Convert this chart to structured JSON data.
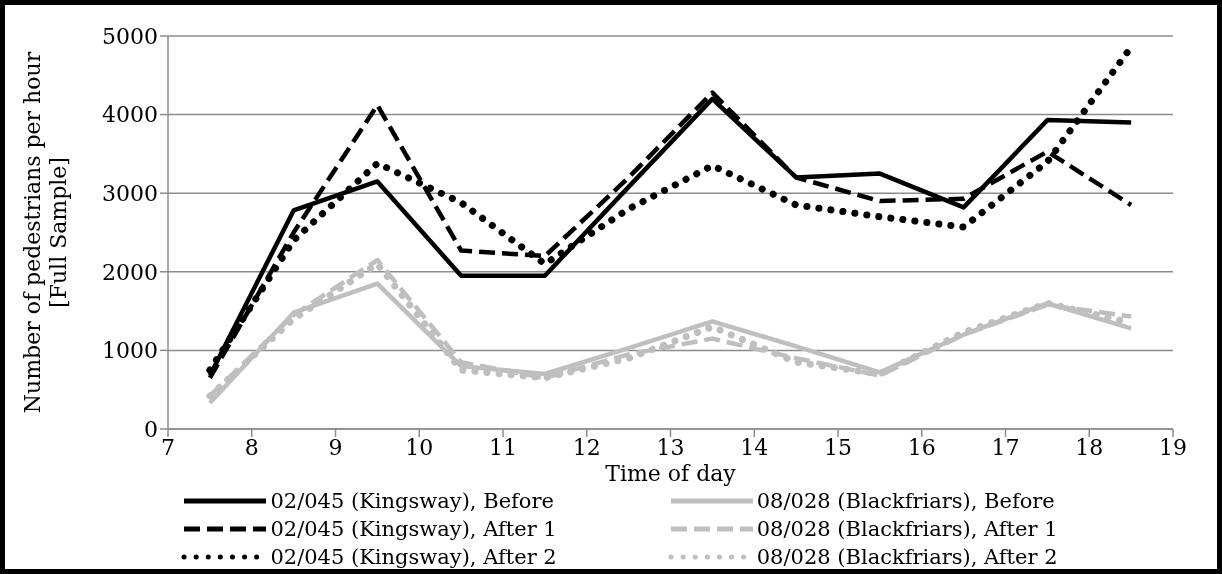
{
  "chart_data": {
    "type": "line",
    "xlabel": "Time of day",
    "ylabel": "Number of pedestrians per hour [Full Sample]",
    "x": [
      7.5,
      8.5,
      9.5,
      10.5,
      11.5,
      12.5,
      13.5,
      14.5,
      15.5,
      16.5,
      17.5,
      18.5
    ],
    "xlim": [
      7,
      19
    ],
    "xticks": [
      7,
      8,
      9,
      10,
      11,
      12,
      13,
      14,
      15,
      16,
      17,
      18,
      19
    ],
    "ylim": [
      0,
      5000
    ],
    "yticks": [
      0,
      1000,
      2000,
      3000,
      4000,
      5000
    ],
    "grid": "y",
    "legend": "bottom",
    "marker": "none",
    "series": [
      {
        "name": "02/045 (Kingsway), Before",
        "color": "#000000",
        "line_style": "solid",
        "values": [
          680,
          2780,
          3150,
          1950,
          1950,
          3080,
          4200,
          3200,
          3250,
          2820,
          3930,
          3900
        ]
      },
      {
        "name": "08/028 (Blackfriars), Before",
        "color": "#bfbfbf",
        "line_style": "solid",
        "values": [
          330,
          1480,
          1850,
          800,
          700,
          1030,
          1370,
          1050,
          720,
          1200,
          1600,
          1280
        ]
      },
      {
        "name": "02/045 (Kingsway), After 1",
        "color": "#000000",
        "line_style": "dashed",
        "values": [
          650,
          2500,
          4120,
          2270,
          2200,
          3200,
          4280,
          3200,
          2900,
          2930,
          3530,
          2850
        ]
      },
      {
        "name": "08/028 (Blackfriars), After 1",
        "color": "#bfbfbf",
        "line_style": "dashed",
        "values": [
          420,
          1450,
          2150,
          850,
          650,
          950,
          1150,
          900,
          680,
          1200,
          1580,
          1430
        ]
      },
      {
        "name": "02/045 (Kingsway), After 2",
        "color": "#000000",
        "line_style": "dotted",
        "values": [
          750,
          2400,
          3380,
          2880,
          2100,
          2800,
          3350,
          2850,
          2700,
          2570,
          3400,
          4860
        ]
      },
      {
        "name": "08/028 (Blackfriars), After 2",
        "color": "#bfbfbf",
        "line_style": "dotted",
        "values": [
          420,
          1400,
          2100,
          750,
          650,
          900,
          1300,
          850,
          700,
          1230,
          1600,
          1350
        ]
      }
    ]
  }
}
